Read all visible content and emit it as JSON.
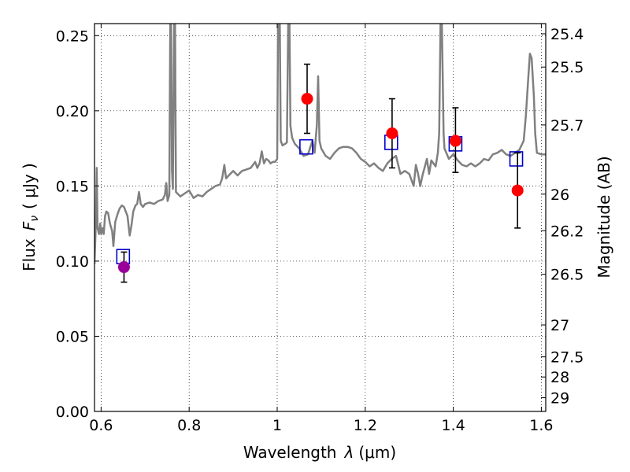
{
  "chart_data": {
    "type": "scatter",
    "xlabel": "Wavelength",
    "xlabel_symbol": "λ",
    "xlabel_unit": "(μm)",
    "ylabel": "Flux",
    "ylabel_symbol": "F",
    "ylabel_subscript": "ν",
    "ylabel_unit": "( μJy )",
    "y2label": "Magnitude (AB)",
    "xlim": [
      0.585,
      1.61
    ],
    "ylim": [
      0.0,
      0.258
    ],
    "grid": true,
    "x_ticks": [
      {
        "value": 0.6,
        "label": "0.6"
      },
      {
        "value": 0.8,
        "label": "0.8"
      },
      {
        "value": 1.0,
        "label": "1"
      },
      {
        "value": 1.2,
        "label": "1.2"
      },
      {
        "value": 1.4,
        "label": "1.4"
      },
      {
        "value": 1.6,
        "label": "1.6"
      }
    ],
    "y_ticks": [
      {
        "value": 0.0,
        "label": "0.00"
      },
      {
        "value": 0.05,
        "label": "0.05"
      },
      {
        "value": 0.1,
        "label": "0.10"
      },
      {
        "value": 0.15,
        "label": "0.15"
      },
      {
        "value": 0.2,
        "label": "0.20"
      },
      {
        "value": 0.25,
        "label": "0.25"
      }
    ],
    "y2_ticks": [
      {
        "value": 25.4,
        "label": "25.4"
      },
      {
        "value": 25.5,
        "label": "25.5"
      },
      {
        "value": 25.7,
        "label": "25.7"
      },
      {
        "value": 26.0,
        "label": "26"
      },
      {
        "value": 26.2,
        "label": "26.2"
      },
      {
        "value": 26.5,
        "label": "26.5"
      },
      {
        "value": 27.0,
        "label": "27"
      },
      {
        "value": 27.5,
        "label": "27.5"
      },
      {
        "value": 28.0,
        "label": "28"
      },
      {
        "value": 29.0,
        "label": "29"
      }
    ],
    "series": [
      {
        "kind": "line",
        "color": "#808080",
        "points": [
          [
            0.585,
            0.098
          ],
          [
            0.588,
            0.125
          ],
          [
            0.59,
            0.162
          ],
          [
            0.592,
            0.122
          ],
          [
            0.595,
            0.118
          ],
          [
            0.598,
            0.125
          ],
          [
            0.6,
            0.118
          ],
          [
            0.603,
            0.122
          ],
          [
            0.606,
            0.118
          ],
          [
            0.609,
            0.13
          ],
          [
            0.612,
            0.133
          ],
          [
            0.616,
            0.132
          ],
          [
            0.62,
            0.125
          ],
          [
            0.625,
            0.12
          ],
          [
            0.628,
            0.11
          ],
          [
            0.632,
            0.126
          ],
          [
            0.637,
            0.131
          ],
          [
            0.642,
            0.135
          ],
          [
            0.647,
            0.137
          ],
          [
            0.652,
            0.136
          ],
          [
            0.656,
            0.133
          ],
          [
            0.66,
            0.13
          ],
          [
            0.665,
            0.117
          ],
          [
            0.669,
            0.124
          ],
          [
            0.673,
            0.133
          ],
          [
            0.678,
            0.137
          ],
          [
            0.682,
            0.138
          ],
          [
            0.686,
            0.146
          ],
          [
            0.69,
            0.138
          ],
          [
            0.695,
            0.136
          ],
          [
            0.7,
            0.138
          ],
          [
            0.71,
            0.139
          ],
          [
            0.72,
            0.138
          ],
          [
            0.73,
            0.14
          ],
          [
            0.74,
            0.141
          ],
          [
            0.745,
            0.144
          ],
          [
            0.748,
            0.152
          ],
          [
            0.751,
            0.14
          ],
          [
            0.755,
            0.144
          ],
          [
            0.757,
            0.258
          ],
          [
            0.759,
            0.258
          ],
          [
            0.761,
            0.16
          ],
          [
            0.763,
            0.148
          ],
          [
            0.766,
            0.258
          ],
          [
            0.768,
            0.258
          ],
          [
            0.77,
            0.146
          ],
          [
            0.78,
            0.143
          ],
          [
            0.79,
            0.145
          ],
          [
            0.8,
            0.147
          ],
          [
            0.81,
            0.142
          ],
          [
            0.82,
            0.144
          ],
          [
            0.83,
            0.143
          ],
          [
            0.84,
            0.146
          ],
          [
            0.85,
            0.148
          ],
          [
            0.86,
            0.15
          ],
          [
            0.87,
            0.151
          ],
          [
            0.875,
            0.155
          ],
          [
            0.88,
            0.164
          ],
          [
            0.884,
            0.155
          ],
          [
            0.89,
            0.157
          ],
          [
            0.9,
            0.16
          ],
          [
            0.91,
            0.157
          ],
          [
            0.92,
            0.16
          ],
          [
            0.93,
            0.161
          ],
          [
            0.94,
            0.162
          ],
          [
            0.95,
            0.166
          ],
          [
            0.955,
            0.162
          ],
          [
            0.96,
            0.165
          ],
          [
            0.965,
            0.173
          ],
          [
            0.97,
            0.165
          ],
          [
            0.975,
            0.168
          ],
          [
            0.98,
            0.167
          ],
          [
            0.985,
            0.165
          ],
          [
            0.99,
            0.166
          ],
          [
            0.995,
            0.166
          ],
          [
            1.0,
            0.168
          ],
          [
            1.002,
            0.258
          ],
          [
            1.006,
            0.258
          ],
          [
            1.008,
            0.18
          ],
          [
            1.012,
            0.177
          ],
          [
            1.018,
            0.178
          ],
          [
            1.022,
            0.179
          ],
          [
            1.025,
            0.258
          ],
          [
            1.028,
            0.258
          ],
          [
            1.03,
            0.19
          ],
          [
            1.034,
            0.182
          ],
          [
            1.04,
            0.178
          ],
          [
            1.05,
            0.175
          ],
          [
            1.06,
            0.17
          ],
          [
            1.07,
            0.171
          ],
          [
            1.08,
            0.18
          ],
          [
            1.085,
            0.172
          ],
          [
            1.09,
            0.19
          ],
          [
            1.093,
            0.223
          ],
          [
            1.096,
            0.18
          ],
          [
            1.1,
            0.175
          ],
          [
            1.11,
            0.17
          ],
          [
            1.12,
            0.168
          ],
          [
            1.13,
            0.172
          ],
          [
            1.14,
            0.175
          ],
          [
            1.15,
            0.176
          ],
          [
            1.16,
            0.176
          ],
          [
            1.17,
            0.175
          ],
          [
            1.18,
            0.172
          ],
          [
            1.19,
            0.168
          ],
          [
            1.2,
            0.166
          ],
          [
            1.21,
            0.163
          ],
          [
            1.22,
            0.165
          ],
          [
            1.23,
            0.162
          ],
          [
            1.24,
            0.16
          ],
          [
            1.25,
            0.165
          ],
          [
            1.26,
            0.168
          ],
          [
            1.27,
            0.17
          ],
          [
            1.28,
            0.158
          ],
          [
            1.29,
            0.16
          ],
          [
            1.3,
            0.158
          ],
          [
            1.31,
            0.15
          ],
          [
            1.315,
            0.164
          ],
          [
            1.32,
            0.158
          ],
          [
            1.325,
            0.15
          ],
          [
            1.33,
            0.157
          ],
          [
            1.34,
            0.168
          ],
          [
            1.345,
            0.158
          ],
          [
            1.35,
            0.167
          ],
          [
            1.36,
            0.163
          ],
          [
            1.365,
            0.172
          ],
          [
            1.368,
            0.185
          ],
          [
            1.371,
            0.258
          ],
          [
            1.374,
            0.258
          ],
          [
            1.378,
            0.185
          ],
          [
            1.38,
            0.175
          ],
          [
            1.39,
            0.168
          ],
          [
            1.4,
            0.171
          ],
          [
            1.41,
            0.167
          ],
          [
            1.42,
            0.164
          ],
          [
            1.43,
            0.163
          ],
          [
            1.44,
            0.165
          ],
          [
            1.45,
            0.163
          ],
          [
            1.46,
            0.165
          ],
          [
            1.47,
            0.168
          ],
          [
            1.48,
            0.167
          ],
          [
            1.49,
            0.171
          ],
          [
            1.5,
            0.172
          ],
          [
            1.51,
            0.174
          ],
          [
            1.52,
            0.171
          ],
          [
            1.53,
            0.17
          ],
          [
            1.54,
            0.172
          ],
          [
            1.55,
            0.174
          ],
          [
            1.56,
            0.18
          ],
          [
            1.565,
            0.197
          ],
          [
            1.57,
            0.22
          ],
          [
            1.574,
            0.238
          ],
          [
            1.578,
            0.235
          ],
          [
            1.583,
            0.21
          ],
          [
            1.586,
            0.185
          ],
          [
            1.59,
            0.172
          ],
          [
            1.6,
            0.171
          ],
          [
            1.61,
            0.171
          ]
        ]
      },
      {
        "kind": "markers",
        "marker": "open-square",
        "color": "#0000cc",
        "points": [
          [
            0.65,
            0.103
          ],
          [
            1.066,
            0.176
          ],
          [
            1.259,
            0.179
          ],
          [
            1.405,
            0.178
          ],
          [
            1.543,
            0.168
          ]
        ]
      },
      {
        "kind": "markers",
        "marker": "filled-circle",
        "color": "#ff0000",
        "points": [
          {
            "x": 1.068,
            "y": 0.208,
            "err_low": 0.023,
            "err_high": 0.023
          },
          {
            "x": 1.261,
            "y": 0.185,
            "err_low": 0.023,
            "err_high": 0.023
          },
          {
            "x": 1.405,
            "y": 0.18,
            "err_low": 0.021,
            "err_high": 0.022
          },
          {
            "x": 1.546,
            "y": 0.147,
            "err_low": 0.025,
            "err_high": 0.025
          }
        ]
      },
      {
        "kind": "markers",
        "marker": "filled-circle",
        "color": "#990099",
        "points": [
          {
            "x": 0.652,
            "y": 0.096,
            "err_low": 0.01,
            "err_high": 0.01
          }
        ]
      }
    ]
  }
}
